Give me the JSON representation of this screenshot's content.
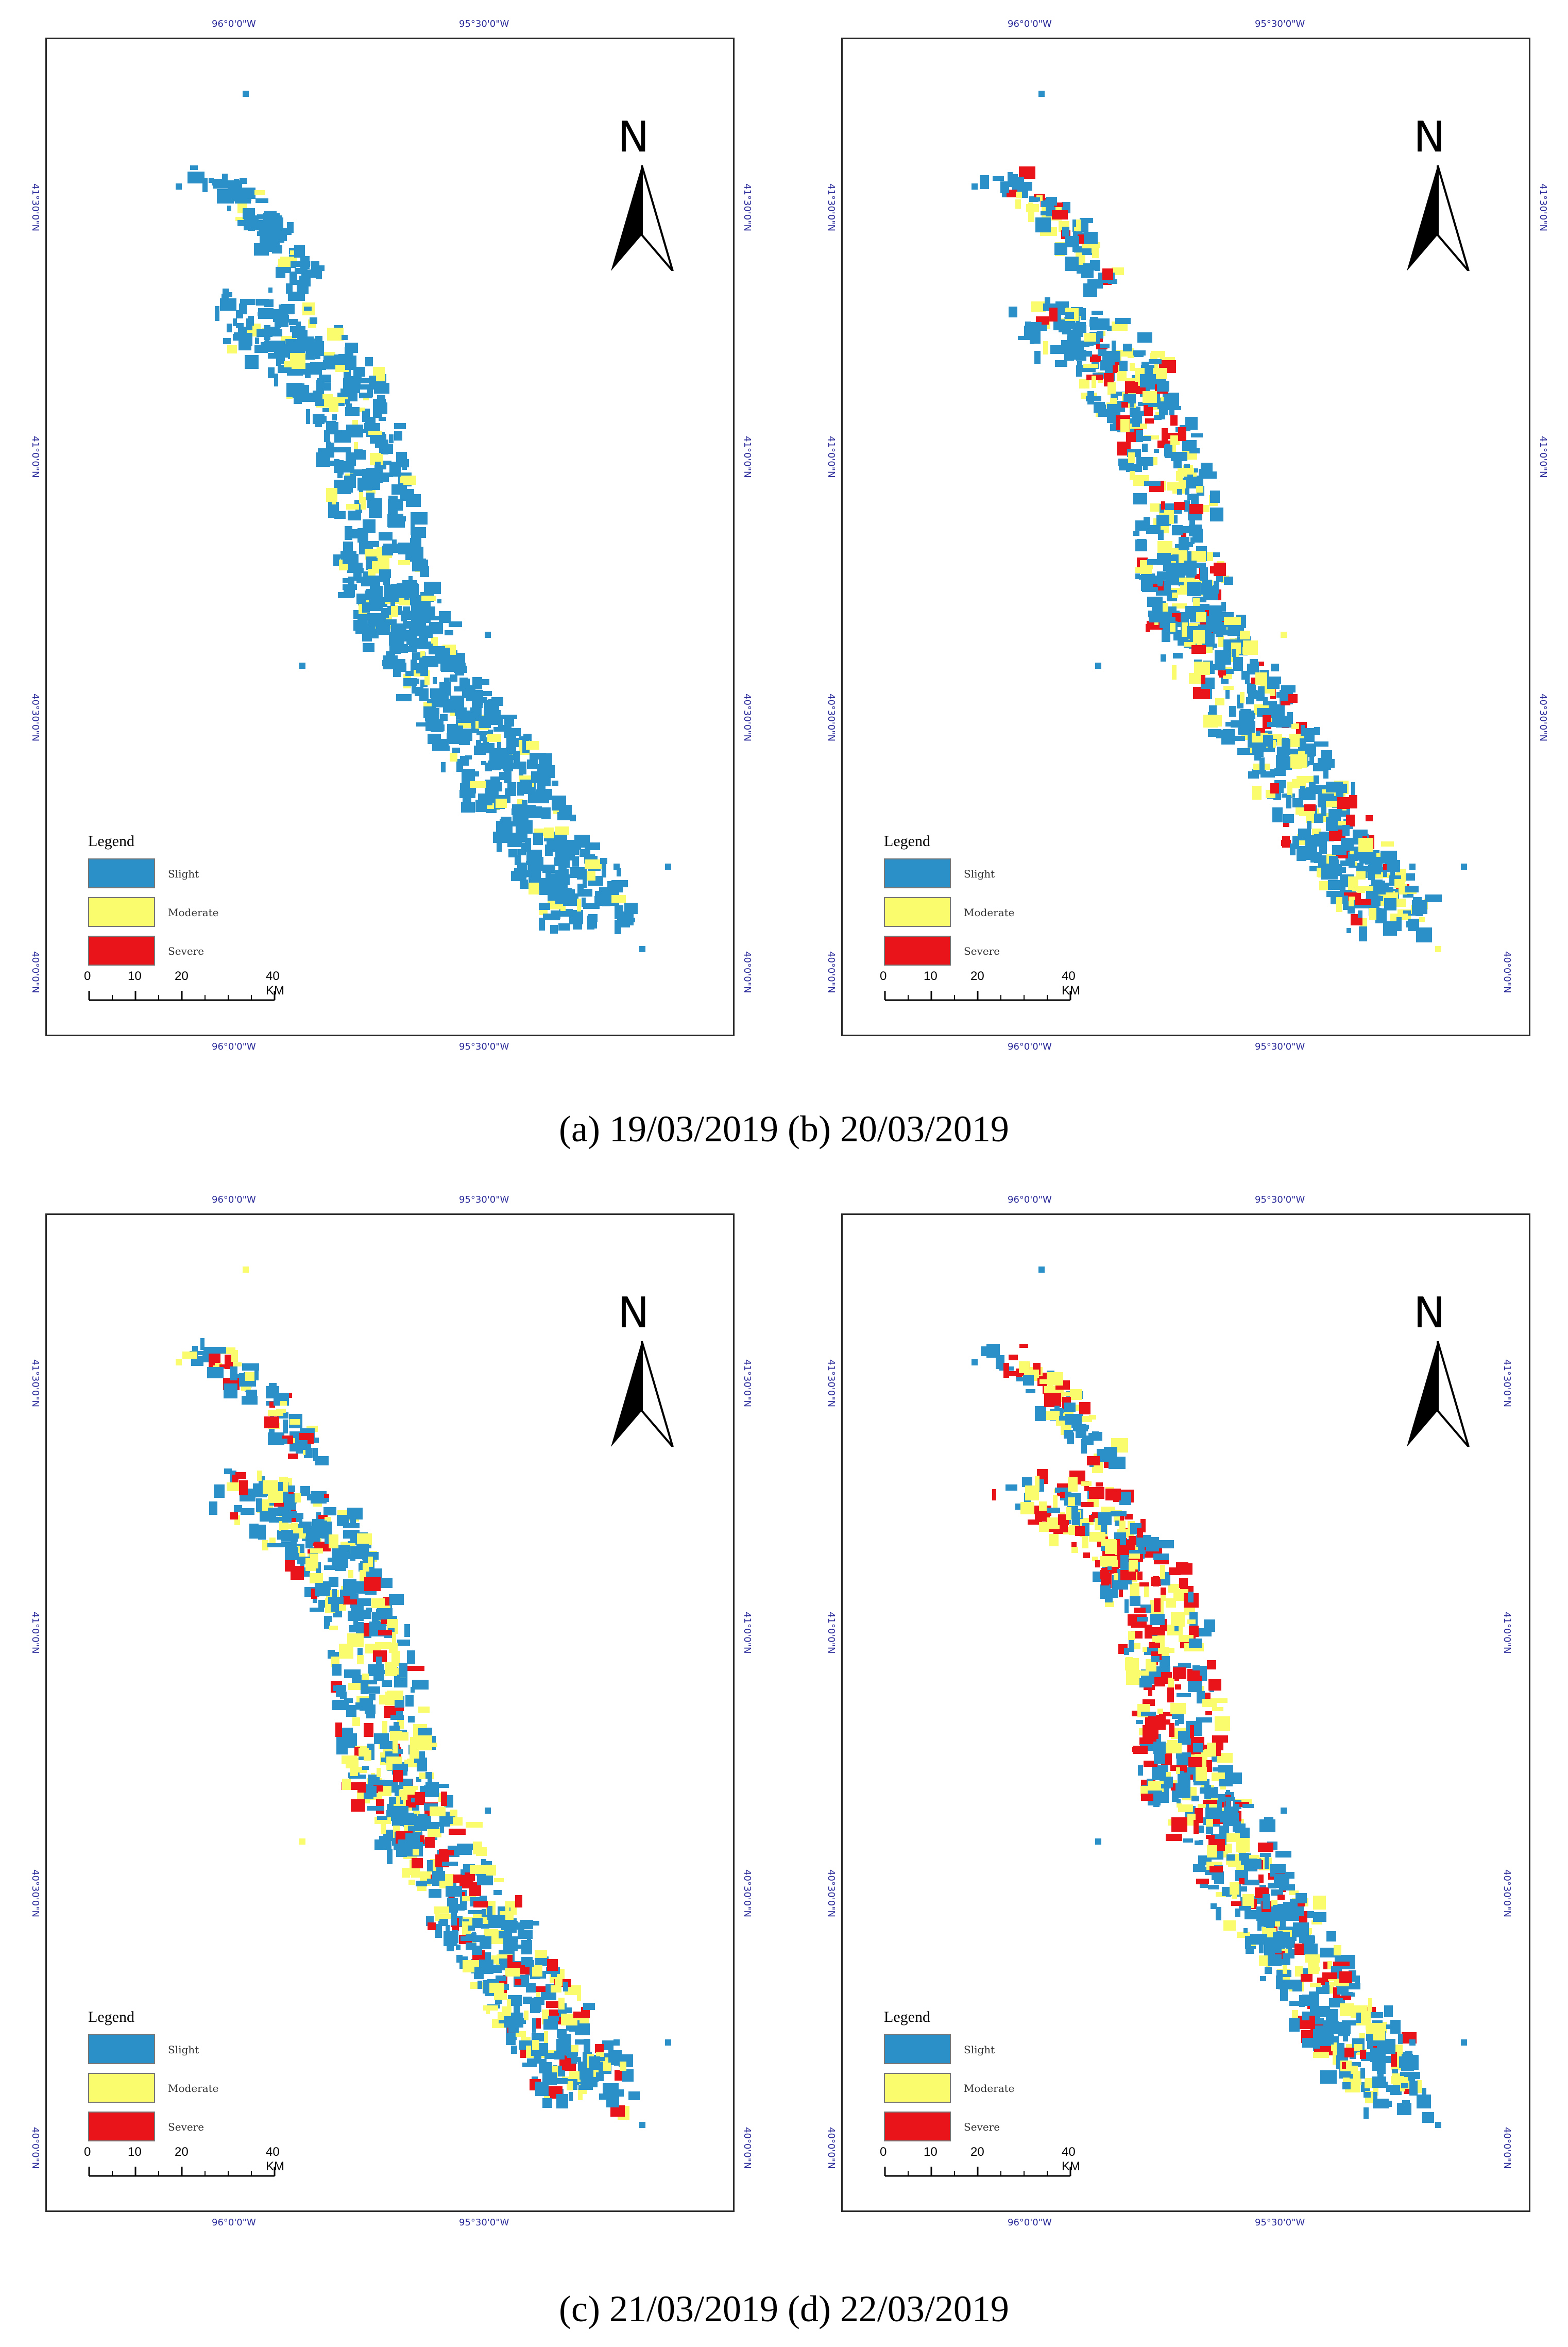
{
  "panels": [
    {
      "id": "a",
      "top_labels": [
        "96°0'0\"W",
        "95°30'0\"W"
      ],
      "bottom_labels": [
        "96°0'0\"W",
        "95°30'0\"W"
      ],
      "left_labels": [
        "41°30'0\"N",
        "41°0'0\"N",
        "40°30'0\"N",
        "40°0'0\"N"
      ],
      "right_labels": [
        "41°30'0\"N",
        "41°0'0\"N",
        "40°30'0\"N",
        "40°0'0\"N"
      ],
      "north": "N",
      "legend": {
        "title": "Legend",
        "items": [
          {
            "label": "Slight",
            "color": "#2b90c8"
          },
          {
            "label": "Moderate",
            "color": "#fbfb6e"
          },
          {
            "label": "Severe",
            "color": "#e8141a"
          }
        ]
      },
      "scale": {
        "ticks": [
          "0",
          "10",
          "20",
          "40 KM"
        ]
      },
      "severity_pattern": "slight"
    },
    {
      "id": "b",
      "top_labels": [
        "96°0'0\"W",
        "95°30'0\"W"
      ],
      "bottom_labels": [
        "96°0'0\"W",
        "95°30'0\"W"
      ],
      "left_labels": [
        "41°30'0\"N",
        "41°0'0\"N",
        "40°30'0\"N",
        "40°0'0\"N"
      ],
      "right_labels": [
        "41°30'0\"N",
        "41°0'0\"N",
        "40°30'0\"N",
        "40°0'0\"N"
      ],
      "north": "N",
      "legend": {
        "title": "Legend",
        "items": [
          {
            "label": "Slight",
            "color": "#2b90c8"
          },
          {
            "label": "Moderate",
            "color": "#fbfb6e"
          },
          {
            "label": "Severe",
            "color": "#e8141a"
          }
        ]
      },
      "scale": {
        "ticks": [
          "0",
          "10",
          "20",
          "40 KM"
        ]
      },
      "severity_pattern": "moderate"
    },
    {
      "id": "c",
      "top_labels": [
        "96°0'0\"W",
        "95°30'0\"W"
      ],
      "bottom_labels": [
        "96°0'0\"W",
        "95°30'0\"W"
      ],
      "left_labels": [
        "41°30'0\"N",
        "41°0'0\"N",
        "40°30'0\"N",
        "40°0'0\"N"
      ],
      "right_labels": [
        "41°30'0\"N",
        "41°0'0\"N",
        "40°30'0\"N",
        "40°0'0\"N"
      ],
      "north": "N",
      "legend": {
        "title": "Legend",
        "items": [
          {
            "label": "Slight",
            "color": "#2b90c8"
          },
          {
            "label": "Moderate",
            "color": "#fbfb6e"
          },
          {
            "label": "Severe",
            "color": "#e8141a"
          }
        ]
      },
      "scale": {
        "ticks": [
          "0",
          "10",
          "20",
          "40 KM"
        ]
      },
      "severity_pattern": "moderate2"
    },
    {
      "id": "d",
      "top_labels": [
        "96°0'0\"W",
        "95°30'0\"W"
      ],
      "bottom_labels": [
        "96°0'0\"W",
        "95°30'0\"W"
      ],
      "left_labels": [
        "41°30'0\"N",
        "41°0'0\"N",
        "40°30'0\"N",
        "40°0'0\"N"
      ],
      "right_labels": [
        "41°30'0\"N",
        "41°0'0\"N",
        "40°30'0\"N",
        "40°0'0\"N"
      ],
      "north": "N",
      "legend": {
        "title": "Legend",
        "items": [
          {
            "label": "Slight",
            "color": "#2b90c8"
          },
          {
            "label": "Moderate",
            "color": "#fbfb6e"
          },
          {
            "label": "Severe",
            "color": "#e8141a"
          }
        ]
      },
      "scale": {
        "ticks": [
          "0",
          "10",
          "20",
          "40 KM"
        ]
      },
      "severity_pattern": "severe"
    }
  ],
  "captions": {
    "top": "(a) 19/03/2019 (b) 20/03/2019",
    "bottom": "(c) 21/03/2019 (d) 22/03/2019"
  }
}
